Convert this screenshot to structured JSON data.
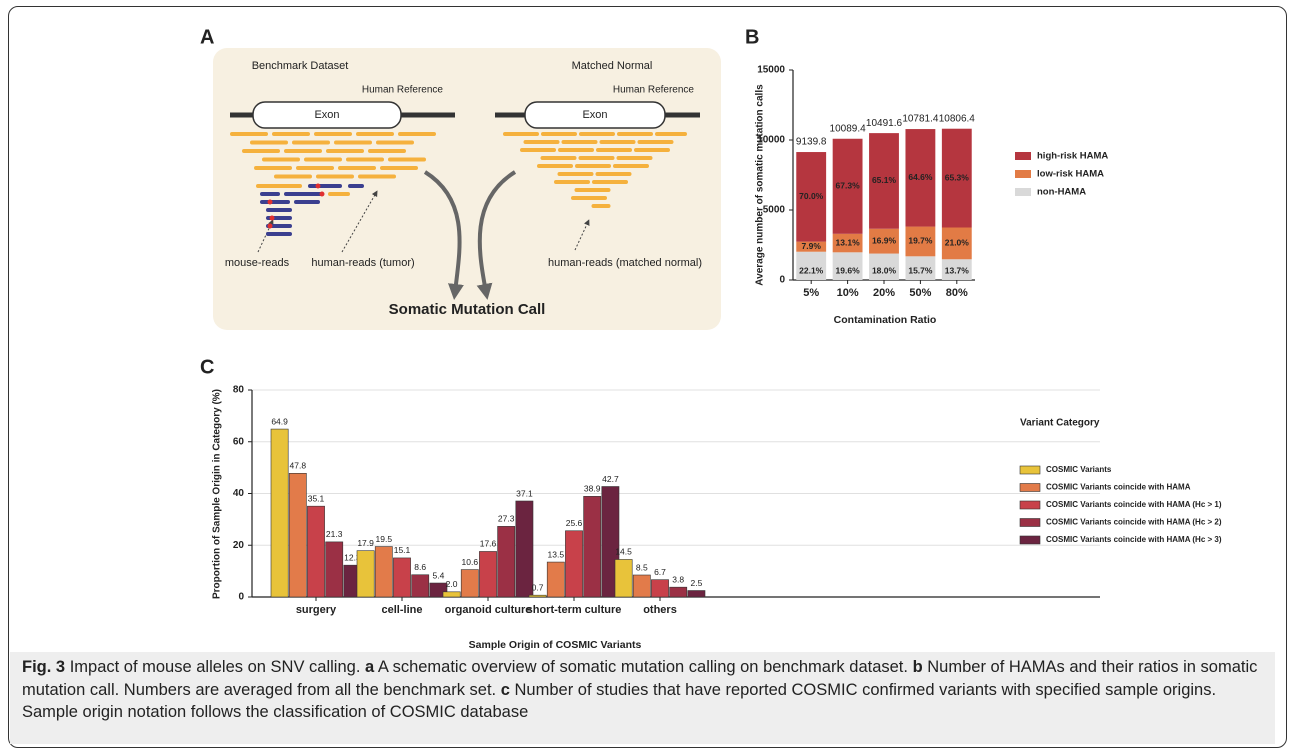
{
  "diagram": {
    "panel": "A",
    "left_title": "Benchmark Dataset",
    "left_reference": "Human Reference",
    "left_exon": "Exon",
    "mouse_reads": "mouse-reads",
    "tumor_reads": "human-reads (tumor)",
    "right_title": "Matched Normal",
    "right_reference": "Human Reference",
    "right_exon": "Exon",
    "normal_reads": "human-reads (matched normal)",
    "output": "Somatic Mutation Call"
  },
  "chart_data": [
    {
      "type": "bar",
      "panel": "B",
      "stacked": true,
      "y_label": "Average number of somatic mutation calls",
      "x_label": "Contamination Ratio",
      "categories": [
        "5%",
        "10%",
        "20%",
        "50%",
        "80%"
      ],
      "totals": [
        9139.8,
        10089.4,
        10491.6,
        10781.4,
        10806.4
      ],
      "series": [
        {
          "name": "non-HAMA",
          "color": "#d9d9d9",
          "values": [
            2019.9,
            1977.5,
            1888.5,
            1692.7,
            1480.5
          ],
          "value_labels": [
            "22.1%",
            "19.6%",
            "18.0%",
            "15.7%",
            "13.7%"
          ]
        },
        {
          "name": "low-risk HAMA",
          "color": "#e27b45",
          "values": [
            722.0,
            1321.7,
            1773.1,
            2123.9,
            2269.3
          ],
          "value_labels": [
            "7.9%",
            "13.1%",
            "16.9%",
            "19.7%",
            "21.0%"
          ]
        },
        {
          "name": "high-risk HAMA",
          "color": "#b5363f",
          "values": [
            6397.9,
            6790.2,
            6830.0,
            6964.8,
            7056.6
          ],
          "value_labels": [
            "70.0%",
            "67.3%",
            "65.1%",
            "64.6%",
            "65.3%"
          ]
        }
      ],
      "ylim": [
        0,
        15000
      ],
      "yticks": [
        0,
        5000,
        10000,
        15000
      ],
      "grid": false,
      "legend": "right"
    },
    {
      "type": "bar",
      "panel": "C",
      "stacked": false,
      "y_label": "Proportion of Sample Origin in Category (%)",
      "x_label": "Sample Origin of COSMIC Variants",
      "legend_title": "Variant Category",
      "categories": [
        "surgery",
        "cell-line",
        "organoid culture",
        "short-term culture",
        "others"
      ],
      "series": [
        {
          "name": "COSMIC Variants",
          "color": "#e8c33a",
          "values": [
            64.9,
            17.9,
            2.0,
            0.7,
            14.5
          ],
          "value_labels": [
            "64.9",
            "17.9",
            "2.0",
            "0.7",
            "14.5"
          ]
        },
        {
          "name": "COSMIC Variants coincide with HAMA",
          "color": "#e27b4a",
          "values": [
            47.8,
            19.5,
            10.6,
            13.5,
            8.5
          ]
        },
        {
          "name": "COSMIC Variants coincide with HAMA (Hc > 1)",
          "color": "#c8414a",
          "values": [
            35.1,
            15.1,
            17.6,
            25.6,
            6.7
          ]
        },
        {
          "name": "COSMIC Variants coincide with HAMA (Hc > 2)",
          "color": "#9b3045",
          "values": [
            21.3,
            8.6,
            27.3,
            38.9,
            3.8
          ]
        },
        {
          "name": "COSMIC Variants coincide with HAMA (Hc > 3)",
          "color": "#6b2440",
          "values": [
            12.3,
            5.4,
            37.1,
            42.7,
            2.5
          ]
        }
      ],
      "ylim": [
        0,
        80
      ],
      "yticks": [
        0,
        20,
        40,
        60,
        80
      ],
      "grid": true,
      "legend": "right"
    }
  ],
  "caption": {
    "label": "Fig. 3",
    "title": "Impact of mouse alleles on SNV calling.",
    "parts": [
      {
        "letter": "a",
        "text": "A schematic overview of somatic mutation calling on benchmark dataset."
      },
      {
        "letter": "b",
        "text": "Number of HAMAs and their ratios in somatic mutation call. Numbers are averaged from all the benchmark set."
      },
      {
        "letter": "c",
        "text": "Number of studies that have reported COSMIC confirmed variants with specified sample origins. Sample origin notation follows the classification of COSMIC database"
      }
    ]
  }
}
